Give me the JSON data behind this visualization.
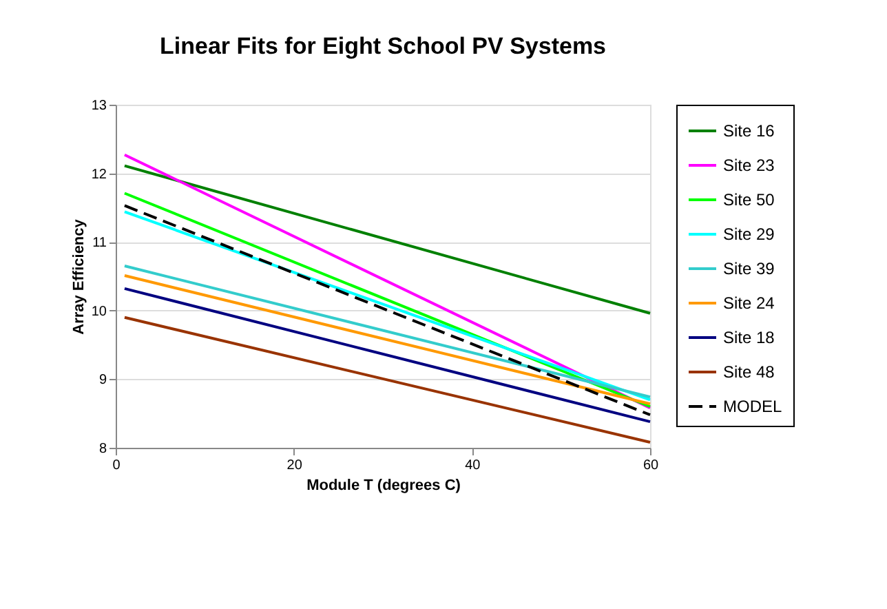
{
  "chart_data": {
    "type": "line",
    "title": "Linear Fits for Eight School PV Systems",
    "xlabel": "Module T (degrees C)",
    "ylabel": "Array Efficiency",
    "x": [
      1,
      60
    ],
    "xlim": [
      0,
      60
    ],
    "xticks": [
      0,
      20,
      40,
      60
    ],
    "ylim": [
      8,
      13
    ],
    "yticks": [
      8,
      9,
      10,
      11,
      12,
      13
    ],
    "grid": "y",
    "legend": "right",
    "marker": "none",
    "series": [
      {
        "name": "Site 16",
        "color": "#008000",
        "values": [
          12.11,
          9.96
        ]
      },
      {
        "name": "Site 23",
        "color": "#ff00ff",
        "values": [
          12.27,
          8.58
        ]
      },
      {
        "name": "Site 50",
        "color": "#00ff00",
        "values": [
          11.71,
          8.6
        ]
      },
      {
        "name": "Site 29",
        "color": "#00ffff",
        "values": [
          11.44,
          8.7
        ]
      },
      {
        "name": "Site 39",
        "color": "#33cccc",
        "values": [
          10.65,
          8.74
        ]
      },
      {
        "name": "Site 24",
        "color": "#ff9900",
        "values": [
          10.51,
          8.64
        ]
      },
      {
        "name": "Site 18",
        "color": "#000080",
        "values": [
          10.32,
          8.38
        ]
      },
      {
        "name": "Site 48",
        "color": "#993300",
        "values": [
          9.9,
          8.08
        ]
      },
      {
        "name": "MODEL",
        "color": "#000000",
        "values": [
          11.53,
          8.48
        ],
        "line_style": "dashed"
      }
    ]
  }
}
